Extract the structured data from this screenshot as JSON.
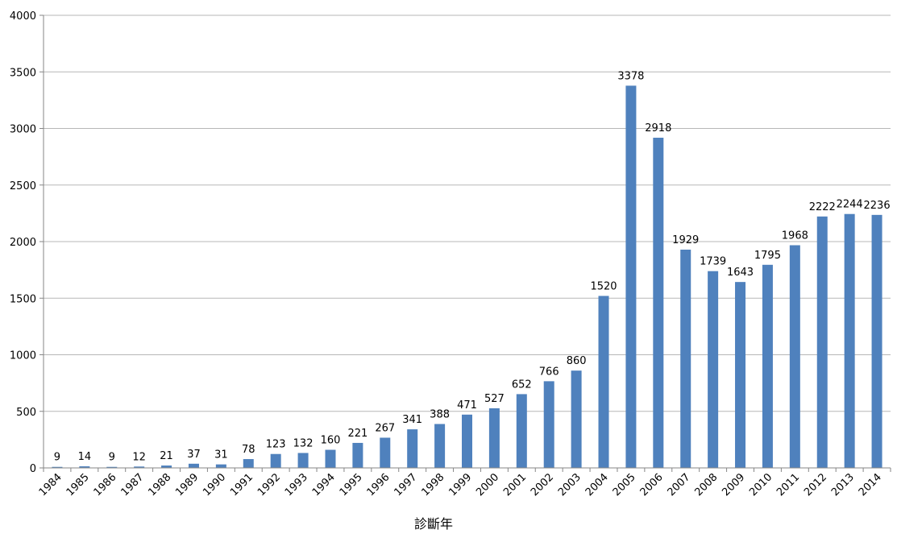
{
  "chart_data": {
    "type": "bar",
    "title": "",
    "xlabel": "診斷年",
    "ylabel": "",
    "ylim": [
      0,
      4000
    ],
    "yticks": [
      0,
      500,
      1000,
      1500,
      2000,
      2500,
      3000,
      3500,
      4000
    ],
    "grid": true,
    "bar_color": "#4F81BD",
    "categories": [
      "1984",
      "1985",
      "1986",
      "1987",
      "1988",
      "1989",
      "1990",
      "1991",
      "1992",
      "1993",
      "1994",
      "1995",
      "1996",
      "1997",
      "1998",
      "1999",
      "2000",
      "2001",
      "2002",
      "2003",
      "2004",
      "2005",
      "2006",
      "2007",
      "2008",
      "2009",
      "2010",
      "2011",
      "2012",
      "2013",
      "2014"
    ],
    "values": [
      9,
      14,
      9,
      12,
      21,
      37,
      31,
      78,
      123,
      132,
      160,
      221,
      267,
      341,
      388,
      471,
      527,
      652,
      766,
      860,
      1520,
      3378,
      2918,
      1929,
      1739,
      1643,
      1795,
      1968,
      2222,
      2244,
      2236
    ]
  }
}
